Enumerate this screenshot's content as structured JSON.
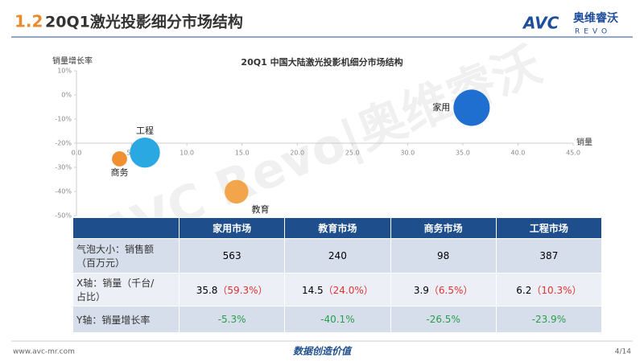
{
  "header": {
    "number": "1.2",
    "title": "20Q1激光投影细分市场结构",
    "logo": {
      "brand": "AVC",
      "name": "奥维睿沃",
      "sub": "REVO"
    }
  },
  "watermark": "AVC Revo|奥维睿沃",
  "chart_data": {
    "type": "bubble",
    "title": "20Q1 中国大陆激光投影机细分市场结构",
    "x_label": "销量",
    "y_label": "销量增长率",
    "xlim": [
      0,
      45
    ],
    "ylim": [
      -50,
      10
    ],
    "x_axis_at": -20,
    "xticks": [
      {
        "value": 0,
        "label": "0.0"
      },
      {
        "value": 5,
        "label": "5.0"
      },
      {
        "value": 10,
        "label": "10.0"
      },
      {
        "value": 15,
        "label": "15.0"
      },
      {
        "value": 20,
        "label": "20.0"
      },
      {
        "value": 25,
        "label": "25.0"
      },
      {
        "value": 30,
        "label": "30.0"
      },
      {
        "value": 35,
        "label": "35.0"
      },
      {
        "value": 40,
        "label": "40.0"
      },
      {
        "value": 45,
        "label": "45.0"
      }
    ],
    "yticks": [
      {
        "value": 10,
        "label": "10%"
      },
      {
        "value": 0,
        "label": "0%"
      },
      {
        "value": -10,
        "label": "-10%"
      },
      {
        "value": -20,
        "label": "-20%"
      },
      {
        "value": -30,
        "label": "-30%"
      },
      {
        "value": -40,
        "label": "-40%"
      },
      {
        "value": -50,
        "label": "-50%"
      }
    ],
    "grid": false,
    "points": [
      {
        "label": "家用",
        "x": 35.8,
        "y": -5.3,
        "size": 563,
        "color": "#1e6fd0"
      },
      {
        "label": "教育",
        "x": 14.5,
        "y": -40.1,
        "size": 240,
        "color": "#f2a54a"
      },
      {
        "label": "商务",
        "x": 3.9,
        "y": -26.5,
        "size": 98,
        "color": "#f09030"
      },
      {
        "label": "工程",
        "x": 6.2,
        "y": -23.9,
        "size": 387,
        "color": "#2aa8e2"
      }
    ]
  },
  "table": {
    "header": [
      "家用市场",
      "教育市场",
      "商务市场",
      "工程市场"
    ],
    "rows": [
      {
        "label": [
          "气泡大小：销售额",
          "（百万元）"
        ],
        "cells": [
          {
            "value": "563"
          },
          {
            "value": "240"
          },
          {
            "value": "98"
          },
          {
            "value": "387"
          }
        ]
      },
      {
        "label": [
          "X轴：销量（千台/",
          "占比）"
        ],
        "cells": [
          {
            "value": "35.8",
            "share": "（59.3%）"
          },
          {
            "value": "14.5",
            "share": "（24.0%）"
          },
          {
            "value": "3.9",
            "share": "（6.5%）"
          },
          {
            "value": "6.2",
            "share": "（10.3%）"
          }
        ]
      },
      {
        "label": [
          "Y轴：销量增长率"
        ],
        "cells": [
          {
            "value": "-5.3%",
            "color": "#2a9d4a"
          },
          {
            "value": "-40.1%",
            "color": "#2a9d4a"
          },
          {
            "value": "-26.5%",
            "color": "#2a9d4a"
          },
          {
            "value": "-23.9%",
            "color": "#2a9d4a"
          }
        ]
      }
    ]
  },
  "footer": {
    "url": "www.avc-mr.com",
    "slogan": "数据创造价值",
    "page": "4/14"
  }
}
